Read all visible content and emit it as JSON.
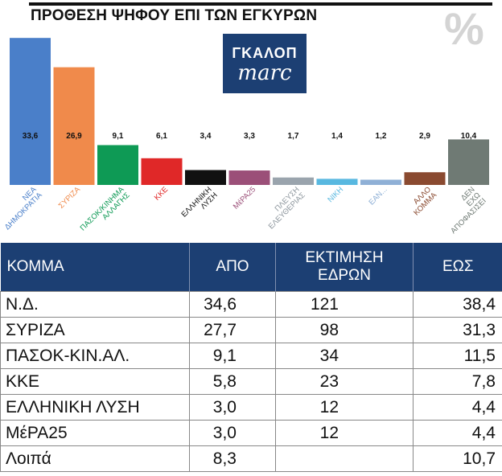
{
  "header": {
    "title": "ΠΡΟΘΕΣΗ ΨΗΦΟΥ ΕΠΙ ΤΩΝ ΕΓΚΥΡΩΝ",
    "percent_symbol": "%"
  },
  "logo": {
    "line1": "ΓΚΑΛΟΠ",
    "line2": "marc",
    "color": "#1c3f73"
  },
  "chart_data": {
    "type": "bar",
    "title": "ΠΡΟΘΕΣΗ ΨΗΦΟΥ ΕΠΙ ΤΩΝ ΕΓΚΥΡΩΝ",
    "categories": [
      "ΝΕΑ ΔΗΜΟΚΡΑΤΙΑ",
      "ΣΥΡΙΖΑ",
      "ΠΑΣΟΚ/ΚΙΝΗΜΑ ΑΛΛΑΓΗΣ",
      "ΚΚΕ",
      "ΕΛΛΗΝΙΚΗ ΛΥΣΗ",
      "ΜέΡΑ25",
      "ΠΛΕΥΣΗ ΕΛΕΥΘΕΡΙΑΣ",
      "ΝΙΚΗ",
      "ΕΑΝ...",
      "ΑΛΛΟ ΚΟΜΜΑ",
      "ΔΕΝ ΕΧΩ ΑΠΟΦΑΣΙΣΕΙ"
    ],
    "values": [
      33.6,
      26.9,
      9.1,
      6.1,
      3.4,
      3.3,
      1.7,
      1.4,
      1.2,
      2.9,
      10.4
    ],
    "labels": [
      "33,6",
      "26,9",
      "9,1",
      "6,1",
      "3,4",
      "3,3",
      "1,7",
      "1,4",
      "1,2",
      "2,9",
      "10,4"
    ],
    "colors": [
      "#4a7fc9",
      "#f08a4b",
      "#0e9a55",
      "#e02828",
      "#111111",
      "#9b4f78",
      "#9aa4ad",
      "#58b8e0",
      "#8fb0d6",
      "#8a4a30",
      "#6f7a74"
    ],
    "label_colors": [
      "#4a7fc9",
      "#f08a4b",
      "#0e9a55",
      "#e02828",
      "#111111",
      "#9b4f78",
      "#8e979e",
      "#58b8e0",
      "#8fb0d6",
      "#8a4a30",
      "#6f7a74"
    ],
    "ylim": [
      0,
      34
    ]
  },
  "table": {
    "headers": [
      [
        "ΚΟΜΜΑ"
      ],
      [
        "ΑΠΟ"
      ],
      [
        "ΕΚΤΙΜΗΣΗ",
        "ΕΔΡΩΝ"
      ],
      [
        "ΕΩΣ"
      ]
    ],
    "rows": [
      [
        "Ν.Δ.",
        "34,6",
        "121",
        "38,4"
      ],
      [
        "ΣΥΡΙΖΑ",
        "27,7",
        "98",
        "31,3"
      ],
      [
        "ΠΑΣΟΚ-ΚΙΝ.ΑΛ.",
        "9,1",
        "34",
        "11,5"
      ],
      [
        "ΚΚΕ",
        "5,8",
        "23",
        "7,8"
      ],
      [
        "ΕΛΛΗΝΙΚΗ ΛΥΣΗ",
        "3,0",
        "12",
        "4,4"
      ],
      [
        "ΜέΡΑ25",
        "3,0",
        "12",
        "4,4"
      ],
      [
        "Λοιπά",
        "8,3",
        "",
        "10,7"
      ]
    ],
    "header_color": "#1c3f73"
  }
}
